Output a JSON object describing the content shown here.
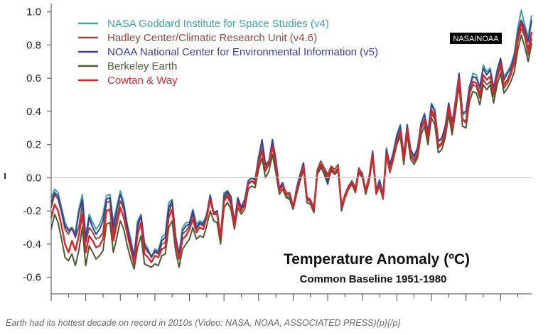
{
  "caption": "Earth had its hottest decade on record in 2010s (Video: NASA, NOAA, ASSOCIATED PRESS){p}{/p}",
  "badge": "NASA/NOAA",
  "chart_data": {
    "type": "line",
    "title": "Temperature Anomaly (ºC)",
    "subtitle": "Common Baseline 1951-1980",
    "xlabel": "",
    "ylabel": "",
    "xlim": [
      1880,
      2019
    ],
    "ylim": [
      -0.7,
      1.05
    ],
    "yticks": [
      -0.6,
      -0.4,
      -0.2,
      0.0,
      0.2,
      0.4,
      0.6,
      0.8,
      1.0
    ],
    "ytick_labels": [
      "-0.6",
      "-0.4",
      "-0.2",
      "0.0",
      "0.2",
      "0.4",
      "0.6",
      "0.8",
      "1.0"
    ],
    "zero_line": true,
    "grid": false,
    "legend_position": "top-left",
    "x": [
      1880,
      1881,
      1882,
      1883,
      1884,
      1885,
      1886,
      1887,
      1888,
      1889,
      1890,
      1891,
      1892,
      1893,
      1894,
      1895,
      1896,
      1897,
      1898,
      1899,
      1900,
      1901,
      1902,
      1903,
      1904,
      1905,
      1906,
      1907,
      1908,
      1909,
      1910,
      1911,
      1912,
      1913,
      1914,
      1915,
      1916,
      1917,
      1918,
      1919,
      1920,
      1921,
      1922,
      1923,
      1924,
      1925,
      1926,
      1927,
      1928,
      1929,
      1930,
      1931,
      1932,
      1933,
      1934,
      1935,
      1936,
      1937,
      1938,
      1939,
      1940,
      1941,
      1942,
      1943,
      1944,
      1945,
      1946,
      1947,
      1948,
      1949,
      1950,
      1951,
      1952,
      1953,
      1954,
      1955,
      1956,
      1957,
      1958,
      1959,
      1960,
      1961,
      1962,
      1963,
      1964,
      1965,
      1966,
      1967,
      1968,
      1969,
      1970,
      1971,
      1972,
      1973,
      1974,
      1975,
      1976,
      1977,
      1978,
      1979,
      1980,
      1981,
      1982,
      1983,
      1984,
      1985,
      1986,
      1987,
      1988,
      1989,
      1990,
      1991,
      1992,
      1993,
      1994,
      1995,
      1996,
      1997,
      1998,
      1999,
      2000,
      2001,
      2002,
      2003,
      2004,
      2005,
      2006,
      2007,
      2008,
      2009,
      2010,
      2011,
      2012,
      2013,
      2014,
      2015,
      2016,
      2017,
      2018,
      2019
    ],
    "series": [
      {
        "name": "NASA Goddard Institute for Space Studies (v4)",
        "color": "#3fa3a3",
        "values": [
          -0.12,
          -0.07,
          -0.09,
          -0.18,
          -0.27,
          -0.31,
          -0.3,
          -0.33,
          -0.19,
          -0.1,
          -0.35,
          -0.22,
          -0.27,
          -0.31,
          -0.28,
          -0.22,
          -0.11,
          -0.1,
          -0.27,
          -0.17,
          -0.08,
          -0.15,
          -0.28,
          -0.37,
          -0.47,
          -0.26,
          -0.22,
          -0.39,
          -0.43,
          -0.48,
          -0.43,
          -0.44,
          -0.36,
          -0.34,
          -0.15,
          -0.13,
          -0.35,
          -0.46,
          -0.3,
          -0.27,
          -0.27,
          -0.19,
          -0.28,
          -0.26,
          -0.27,
          -0.22,
          -0.1,
          -0.21,
          -0.2,
          -0.36,
          -0.09,
          -0.08,
          -0.11,
          -0.27,
          -0.13,
          -0.19,
          -0.14,
          -0.02,
          -0.0,
          -0.02,
          0.13,
          0.19,
          0.07,
          0.09,
          0.2,
          0.09,
          -0.07,
          -0.03,
          -0.11,
          -0.11,
          -0.17,
          -0.07,
          0.01,
          0.08,
          -0.13,
          -0.14,
          -0.19,
          0.05,
          0.06,
          0.03,
          -0.03,
          0.06,
          0.03,
          0.05,
          -0.2,
          -0.11,
          -0.06,
          -0.02,
          -0.08,
          0.05,
          0.03,
          -0.08,
          0.01,
          0.16,
          -0.07,
          -0.01,
          -0.1,
          0.18,
          0.07,
          0.16,
          0.26,
          0.32,
          0.14,
          0.31,
          0.16,
          0.12,
          0.18,
          0.32,
          0.39,
          0.27,
          0.45,
          0.41,
          0.22,
          0.23,
          0.31,
          0.45,
          0.33,
          0.46,
          0.61,
          0.38,
          0.39,
          0.54,
          0.63,
          0.62,
          0.53,
          0.68,
          0.64,
          0.66,
          0.54,
          0.65,
          0.72,
          0.61,
          0.64,
          0.68,
          0.75,
          0.9,
          1.01,
          0.92,
          0.85,
          0.98
        ]
      },
      {
        "name": "Hadley Center/Climatic Research Unit (v4.6)",
        "color": "#8a4a3c",
        "values": [
          -0.18,
          -0.1,
          -0.13,
          -0.21,
          -0.31,
          -0.34,
          -0.3,
          -0.36,
          -0.3,
          -0.16,
          -0.39,
          -0.3,
          -0.33,
          -0.37,
          -0.36,
          -0.33,
          -0.15,
          -0.14,
          -0.34,
          -0.24,
          -0.14,
          -0.19,
          -0.3,
          -0.4,
          -0.48,
          -0.3,
          -0.23,
          -0.42,
          -0.45,
          -0.47,
          -0.45,
          -0.46,
          -0.4,
          -0.39,
          -0.21,
          -0.15,
          -0.36,
          -0.47,
          -0.34,
          -0.32,
          -0.29,
          -0.22,
          -0.31,
          -0.28,
          -0.29,
          -0.22,
          -0.11,
          -0.21,
          -0.2,
          -0.35,
          -0.13,
          -0.09,
          -0.15,
          -0.28,
          -0.13,
          -0.18,
          -0.15,
          -0.03,
          -0.02,
          -0.04,
          0.08,
          0.16,
          0.04,
          0.08,
          0.18,
          0.07,
          -0.07,
          -0.04,
          -0.09,
          -0.09,
          -0.17,
          -0.07,
          0.01,
          0.09,
          -0.12,
          -0.13,
          -0.18,
          0.05,
          0.1,
          0.06,
          0.02,
          0.07,
          0.05,
          0.08,
          -0.17,
          -0.1,
          -0.05,
          -0.02,
          -0.06,
          0.06,
          0.02,
          -0.07,
          0.01,
          0.15,
          -0.08,
          -0.03,
          -0.12,
          0.15,
          0.04,
          0.13,
          0.21,
          0.27,
          0.1,
          0.29,
          0.13,
          0.1,
          0.13,
          0.29,
          0.34,
          0.22,
          0.39,
          0.35,
          0.18,
          0.2,
          0.27,
          0.41,
          0.28,
          0.46,
          0.61,
          0.35,
          0.33,
          0.5,
          0.56,
          0.55,
          0.48,
          0.59,
          0.56,
          0.58,
          0.49,
          0.6,
          0.67,
          0.54,
          0.57,
          0.62,
          0.69,
          0.82,
          0.9,
          0.85,
          0.74,
          0.84
        ]
      },
      {
        "name": "NOAA National Center for Environmental Information (v5)",
        "color": "#3a3c95",
        "values": [
          -0.15,
          -0.09,
          -0.11,
          -0.2,
          -0.29,
          -0.32,
          -0.31,
          -0.35,
          -0.21,
          -0.13,
          -0.37,
          -0.24,
          -0.3,
          -0.34,
          -0.31,
          -0.26,
          -0.13,
          -0.12,
          -0.3,
          -0.19,
          -0.1,
          -0.17,
          -0.29,
          -0.39,
          -0.48,
          -0.28,
          -0.23,
          -0.41,
          -0.44,
          -0.48,
          -0.44,
          -0.45,
          -0.38,
          -0.36,
          -0.18,
          -0.14,
          -0.36,
          -0.47,
          -0.32,
          -0.29,
          -0.28,
          -0.2,
          -0.3,
          -0.27,
          -0.28,
          -0.23,
          -0.11,
          -0.22,
          -0.2,
          -0.36,
          -0.11,
          -0.08,
          -0.12,
          -0.27,
          -0.12,
          -0.18,
          -0.13,
          -0.02,
          0.0,
          -0.01,
          0.12,
          0.23,
          0.08,
          0.1,
          0.23,
          0.11,
          -0.06,
          -0.03,
          -0.12,
          -0.13,
          -0.19,
          -0.06,
          0.02,
          0.09,
          -0.12,
          -0.15,
          -0.21,
          0.04,
          0.07,
          0.02,
          -0.04,
          0.05,
          0.02,
          0.05,
          -0.2,
          -0.12,
          -0.07,
          -0.02,
          -0.09,
          0.05,
          0.02,
          -0.09,
          0.01,
          0.16,
          -0.08,
          -0.02,
          -0.1,
          0.17,
          0.08,
          0.15,
          0.25,
          0.31,
          0.13,
          0.32,
          0.17,
          0.13,
          0.18,
          0.33,
          0.38,
          0.28,
          0.44,
          0.4,
          0.22,
          0.24,
          0.31,
          0.45,
          0.33,
          0.47,
          0.63,
          0.39,
          0.4,
          0.55,
          0.61,
          0.6,
          0.55,
          0.66,
          0.62,
          0.65,
          0.54,
          0.64,
          0.72,
          0.59,
          0.63,
          0.66,
          0.74,
          0.88,
          0.95,
          0.9,
          0.82,
          0.95
        ]
      },
      {
        "name": "Berkeley Earth",
        "color": "#4a5a30",
        "values": [
          -0.31,
          -0.22,
          -0.27,
          -0.37,
          -0.48,
          -0.5,
          -0.46,
          -0.53,
          -0.44,
          -0.3,
          -0.53,
          -0.41,
          -0.45,
          -0.49,
          -0.47,
          -0.44,
          -0.28,
          -0.27,
          -0.45,
          -0.36,
          -0.26,
          -0.31,
          -0.41,
          -0.49,
          -0.55,
          -0.42,
          -0.35,
          -0.52,
          -0.53,
          -0.54,
          -0.52,
          -0.53,
          -0.47,
          -0.46,
          -0.3,
          -0.26,
          -0.44,
          -0.54,
          -0.43,
          -0.4,
          -0.37,
          -0.3,
          -0.37,
          -0.35,
          -0.36,
          -0.29,
          -0.2,
          -0.26,
          -0.27,
          -0.4,
          -0.18,
          -0.15,
          -0.19,
          -0.31,
          -0.18,
          -0.22,
          -0.19,
          -0.07,
          -0.05,
          -0.06,
          0.05,
          0.12,
          0.0,
          0.04,
          0.14,
          0.03,
          -0.1,
          -0.07,
          -0.12,
          -0.12,
          -0.19,
          -0.1,
          -0.02,
          0.05,
          -0.15,
          -0.16,
          -0.21,
          0.02,
          0.06,
          0.03,
          -0.02,
          0.04,
          0.02,
          0.04,
          -0.19,
          -0.12,
          -0.07,
          -0.04,
          -0.09,
          0.03,
          0.0,
          -0.1,
          -0.02,
          0.12,
          -0.1,
          -0.05,
          -0.13,
          0.13,
          0.03,
          0.11,
          0.2,
          0.25,
          0.08,
          0.26,
          0.11,
          0.08,
          0.12,
          0.26,
          0.31,
          0.2,
          0.36,
          0.32,
          0.15,
          0.17,
          0.24,
          0.38,
          0.26,
          0.4,
          0.56,
          0.31,
          0.3,
          0.46,
          0.52,
          0.51,
          0.44,
          0.56,
          0.53,
          0.56,
          0.45,
          0.56,
          0.63,
          0.51,
          0.54,
          0.58,
          0.64,
          0.77,
          0.86,
          0.79,
          0.7,
          0.81
        ]
      },
      {
        "name": "Cowtan & Way",
        "color": "#d8262a",
        "values": [
          -0.24,
          -0.16,
          -0.2,
          -0.29,
          -0.4,
          -0.45,
          -0.38,
          -0.44,
          -0.35,
          -0.22,
          -0.45,
          -0.35,
          -0.38,
          -0.42,
          -0.41,
          -0.37,
          -0.2,
          -0.19,
          -0.38,
          -0.28,
          -0.18,
          -0.24,
          -0.34,
          -0.43,
          -0.52,
          -0.34,
          -0.27,
          -0.46,
          -0.48,
          -0.51,
          -0.47,
          -0.48,
          -0.43,
          -0.42,
          -0.24,
          -0.19,
          -0.39,
          -0.49,
          -0.37,
          -0.35,
          -0.31,
          -0.25,
          -0.33,
          -0.3,
          -0.31,
          -0.24,
          -0.13,
          -0.22,
          -0.22,
          -0.37,
          -0.14,
          -0.11,
          -0.16,
          -0.29,
          -0.15,
          -0.2,
          -0.16,
          -0.04,
          -0.02,
          -0.03,
          0.1,
          0.17,
          0.05,
          0.09,
          0.19,
          0.08,
          -0.08,
          -0.05,
          -0.1,
          -0.1,
          -0.18,
          -0.08,
          0.0,
          0.07,
          -0.13,
          -0.14,
          -0.19,
          0.04,
          0.08,
          0.05,
          0.0,
          0.06,
          0.03,
          0.06,
          -0.18,
          -0.11,
          -0.06,
          -0.03,
          -0.08,
          0.05,
          0.01,
          -0.08,
          0.0,
          0.14,
          -0.09,
          -0.04,
          -0.12,
          0.15,
          0.04,
          0.13,
          0.22,
          0.28,
          0.11,
          0.3,
          0.14,
          0.1,
          0.15,
          0.3,
          0.35,
          0.24,
          0.41,
          0.37,
          0.19,
          0.21,
          0.28,
          0.43,
          0.3,
          0.45,
          0.6,
          0.35,
          0.34,
          0.51,
          0.58,
          0.57,
          0.5,
          0.62,
          0.59,
          0.61,
          0.51,
          0.61,
          0.69,
          0.56,
          0.59,
          0.64,
          0.71,
          0.85,
          0.93,
          0.87,
          0.77,
          0.88
        ]
      }
    ]
  }
}
